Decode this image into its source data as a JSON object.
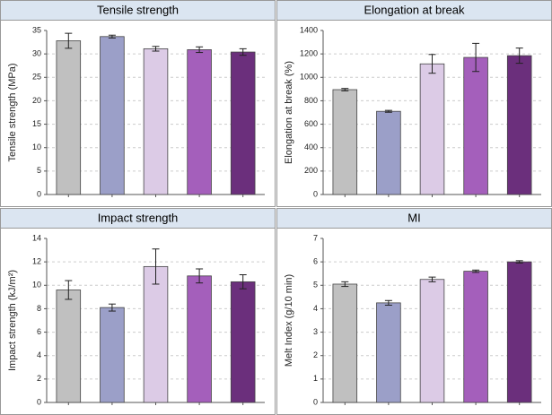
{
  "chart_data": [
    {
      "type": "bar",
      "title": "Tensile strength",
      "y_label": "Tensile strength (MPa)",
      "categories": [
        null,
        null,
        null,
        null,
        null
      ],
      "values": [
        32.8,
        33.7,
        31.1,
        30.9,
        30.4
      ],
      "errors": [
        1.6,
        0.3,
        0.5,
        0.6,
        0.7
      ],
      "colors": [
        "#c0c0c0",
        "#9b9fc8",
        "#dccbe6",
        "#a45fbb",
        "#6b2f7c"
      ],
      "ylim": [
        0,
        35
      ],
      "yticks": [
        0,
        5,
        10,
        15,
        20,
        25,
        30,
        35
      ],
      "grid": true
    },
    {
      "type": "bar",
      "title": "Elongation at break",
      "y_label": "Elongation at break (%)",
      "categories": [
        null,
        null,
        null,
        null,
        null
      ],
      "values": [
        895,
        710,
        1115,
        1170,
        1185
      ],
      "errors": [
        10,
        8,
        80,
        120,
        65
      ],
      "colors": [
        "#c0c0c0",
        "#9b9fc8",
        "#dccbe6",
        "#a45fbb",
        "#6b2f7c"
      ],
      "ylim": [
        0,
        1400
      ],
      "yticks": [
        0,
        200,
        400,
        600,
        800,
        1000,
        1200,
        1400
      ],
      "grid": true
    },
    {
      "type": "bar",
      "title": "Impact strength",
      "y_label": "Impact strength (kJ/m²)",
      "categories": [
        null,
        null,
        null,
        null,
        null
      ],
      "values": [
        9.6,
        8.1,
        11.6,
        10.8,
        10.3
      ],
      "errors": [
        0.8,
        0.3,
        1.5,
        0.6,
        0.6
      ],
      "colors": [
        "#c0c0c0",
        "#9b9fc8",
        "#dccbe6",
        "#a45fbb",
        "#6b2f7c"
      ],
      "ylim": [
        0,
        14
      ],
      "yticks": [
        0,
        2,
        4,
        6,
        8,
        10,
        12,
        14
      ],
      "grid": true
    },
    {
      "type": "bar",
      "title": "MI",
      "y_label": "Melt Index (g/10 min)",
      "categories": [
        null,
        null,
        null,
        null,
        null
      ],
      "values": [
        5.05,
        4.25,
        5.25,
        5.6,
        6.0
      ],
      "errors": [
        0.1,
        0.1,
        0.1,
        0.05,
        0.05
      ],
      "colors": [
        "#c0c0c0",
        "#9b9fc8",
        "#dccbe6",
        "#a45fbb",
        "#6b2f7c"
      ],
      "ylim": [
        0,
        7
      ],
      "yticks": [
        0,
        1,
        2,
        3,
        4,
        5,
        6,
        7
      ],
      "grid": true
    }
  ]
}
